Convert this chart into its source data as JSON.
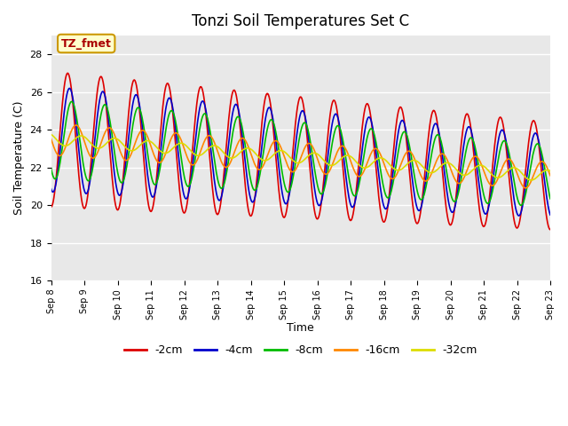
{
  "title": "Tonzi Soil Temperatures Set C",
  "xlabel": "Time",
  "ylabel": "Soil Temperature (C)",
  "ylim": [
    16,
    29
  ],
  "yticks": [
    16,
    18,
    20,
    22,
    24,
    26,
    28
  ],
  "bg_color": "#e8e8e8",
  "annotation_text": "TZ_fmet",
  "annotation_bg": "#ffffcc",
  "annotation_border": "#cc9900",
  "colors": {
    "-2cm": "#dd0000",
    "-4cm": "#0000cc",
    "-8cm": "#00bb00",
    "-16cm": "#ff8800",
    "-32cm": "#dddd00"
  },
  "legend_labels": [
    "-2cm",
    "-4cm",
    "-8cm",
    "-16cm",
    "-32cm"
  ],
  "x_tick_labels": [
    "Sep 8",
    "Sep 9",
    "Sep 10",
    "Sep 11",
    "Sep 12",
    "Sep 13",
    "Sep 14",
    "Sep 15",
    "Sep 16",
    "Sep 17",
    "Sep 18",
    "Sep 19",
    "Sep 20",
    "Sep 21",
    "Sep 22",
    "Sep 23"
  ],
  "n_days": 15,
  "start_day": 8
}
